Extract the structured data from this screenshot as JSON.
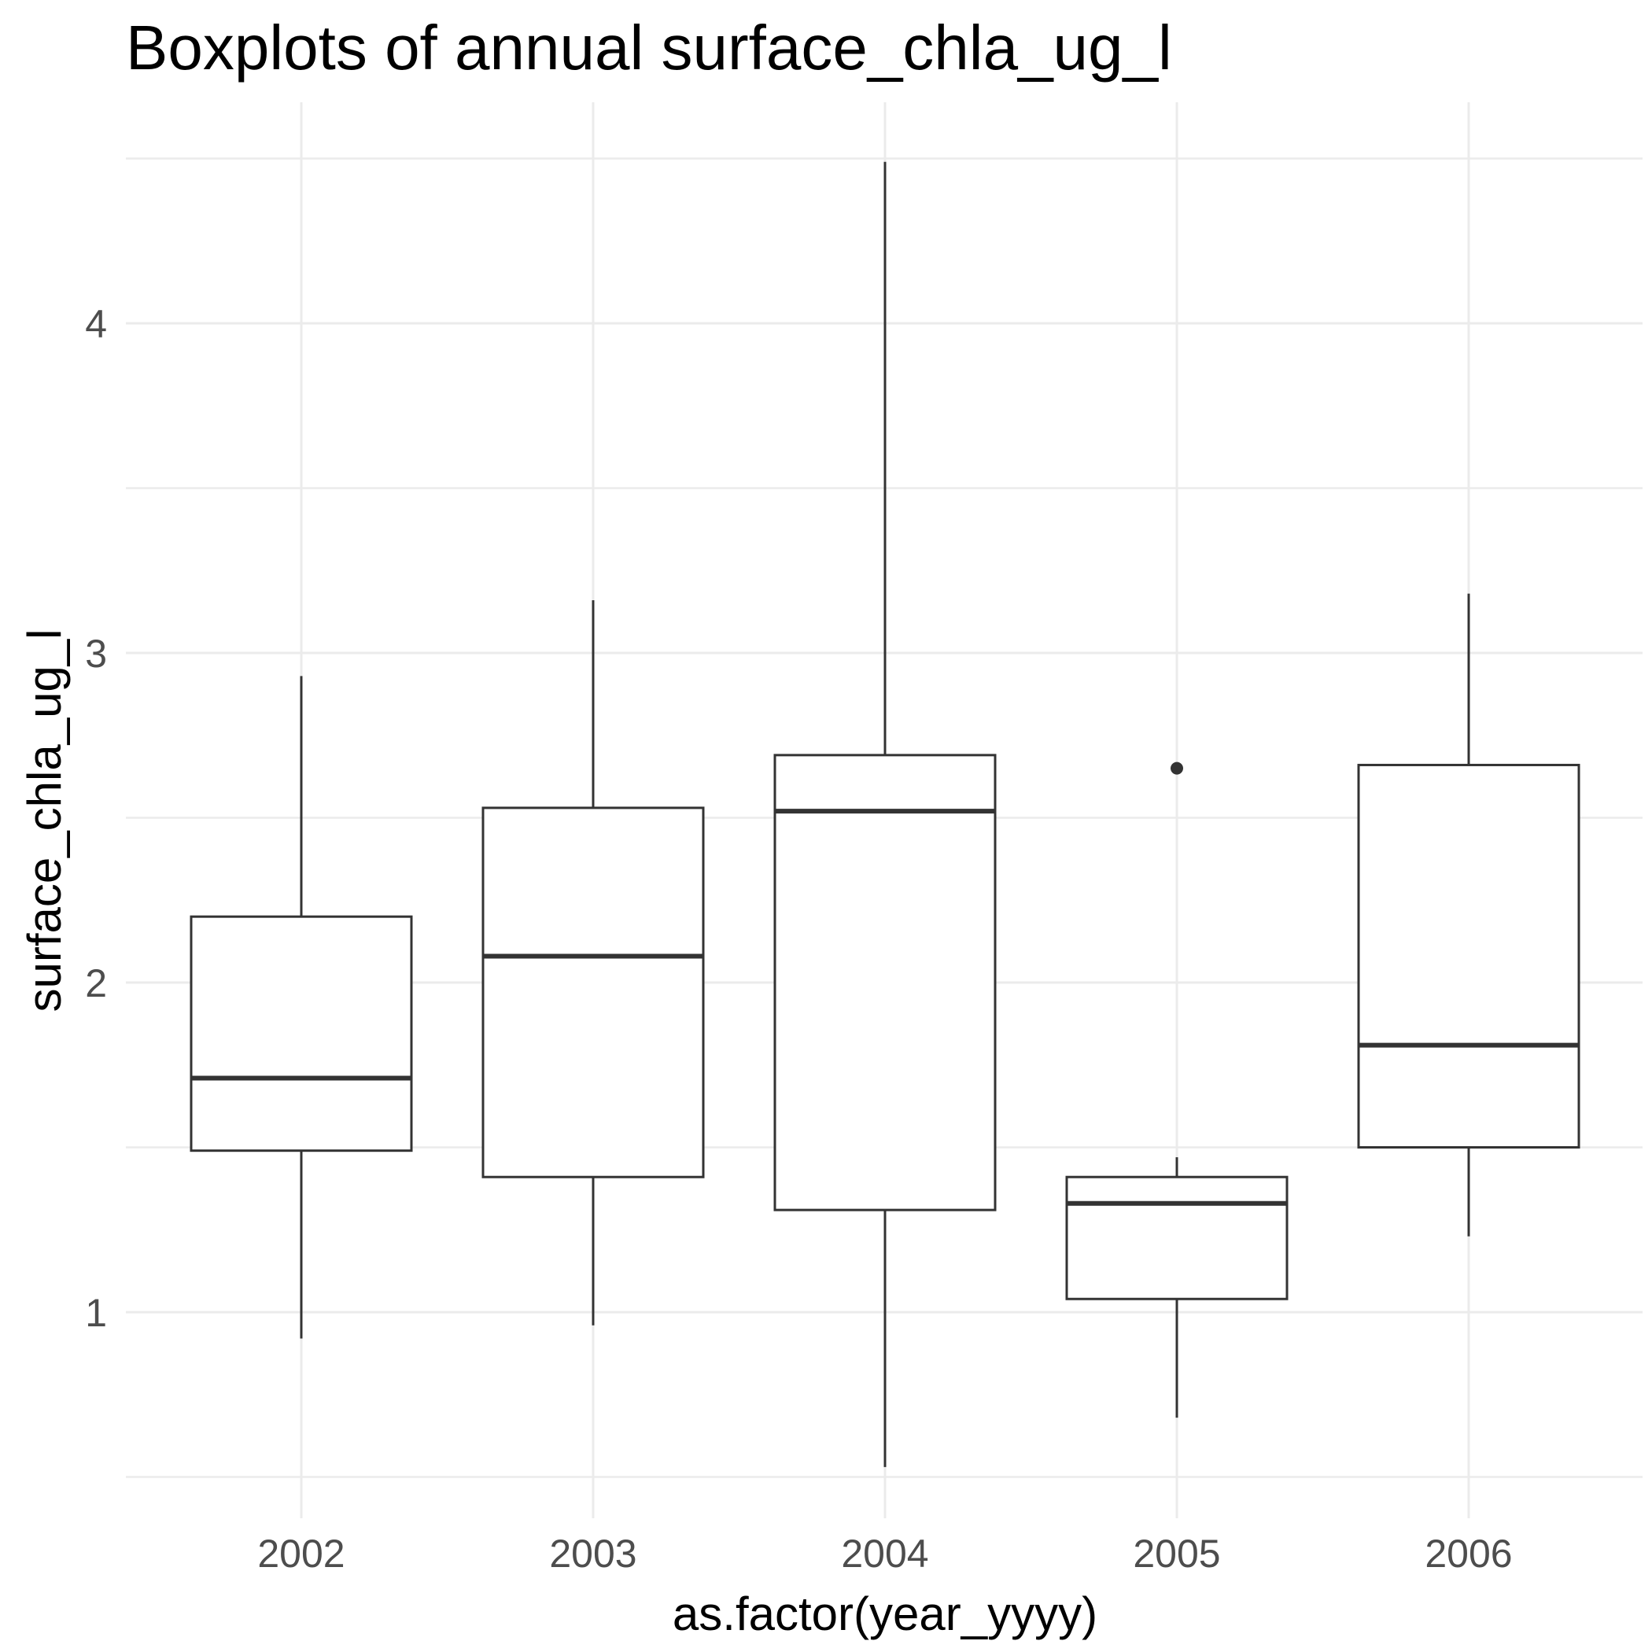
{
  "chart_data": {
    "type": "boxplot",
    "title": "Boxplots of annual surface_chla_ug_l",
    "xlabel": "as.factor(year_yyyy)",
    "ylabel": "surface_chla_ug_l",
    "ylim": [
      0.35,
      4.65
    ],
    "y_ticks": [
      1,
      2,
      3,
      4
    ],
    "y_minor_ticks": [
      0.5,
      1.5,
      2.5,
      3.5,
      4.5
    ],
    "grid": true,
    "legend": "none",
    "categories": [
      "2002",
      "2003",
      "2004",
      "2005",
      "2006"
    ],
    "boxes": [
      {
        "category": "2002",
        "lower_whisker": 0.92,
        "q1": 1.49,
        "median": 1.71,
        "q3": 2.2,
        "upper_whisker": 2.93,
        "outliers": []
      },
      {
        "category": "2003",
        "lower_whisker": 0.96,
        "q1": 1.41,
        "median": 2.08,
        "q3": 2.53,
        "upper_whisker": 3.16,
        "outliers": []
      },
      {
        "category": "2004",
        "lower_whisker": 0.53,
        "q1": 1.31,
        "median": 2.52,
        "q3": 2.69,
        "upper_whisker": 4.49,
        "outliers": []
      },
      {
        "category": "2005",
        "lower_whisker": 0.68,
        "q1": 1.04,
        "median": 1.33,
        "q3": 1.41,
        "upper_whisker": 1.47,
        "outliers": [
          2.65
        ]
      },
      {
        "category": "2006",
        "lower_whisker": 1.23,
        "q1": 1.5,
        "median": 1.81,
        "q3": 2.66,
        "upper_whisker": 3.18,
        "outliers": []
      }
    ]
  }
}
